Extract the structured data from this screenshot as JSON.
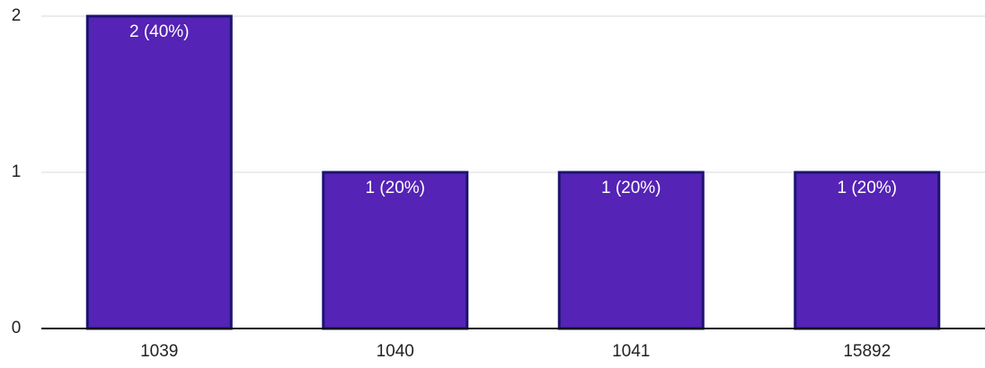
{
  "chart_data": {
    "type": "bar",
    "categories": [
      "1039",
      "1040",
      "1041",
      "15892"
    ],
    "values": [
      2,
      1,
      1,
      1
    ],
    "value_labels": [
      "2 (40%)",
      "1 (20%)",
      "1 (20%)",
      "1 (20%)"
    ],
    "color": "#5523b5",
    "edge_color": "#1c1470",
    "ylim": [
      0,
      2
    ],
    "yticks": [
      0,
      1,
      2
    ],
    "grid": true
  }
}
